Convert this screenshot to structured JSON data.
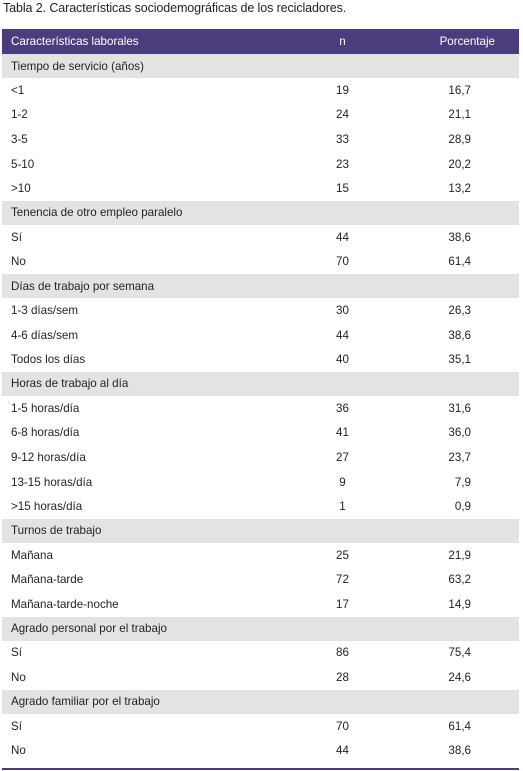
{
  "caption": "Tabla 2. Características sociodemográficas de los recicladores.",
  "header": {
    "col1": "Características laborales",
    "col2": "n",
    "col3": "Porcentaje"
  },
  "sections": [
    {
      "title": "Tiempo de servicio (años)",
      "rows": [
        {
          "label": "<1",
          "n": "19",
          "pct": "16,7"
        },
        {
          "label": "1-2",
          "n": "24",
          "pct": "21,1"
        },
        {
          "label": "3-5",
          "n": "33",
          "pct": "28,9"
        },
        {
          "label": "5-10",
          "n": "23",
          "pct": "20,2"
        },
        {
          "label": ">10",
          "n": "15",
          "pct": "13,2"
        }
      ]
    },
    {
      "title": "Tenencia de otro empleo paralelo",
      "rows": [
        {
          "label": "Sí",
          "n": "44",
          "pct": "38,6"
        },
        {
          "label": "No",
          "n": "70",
          "pct": "61,4"
        }
      ]
    },
    {
      "title": "Días de trabajo por semana",
      "rows": [
        {
          "label": "1-3 días/sem",
          "n": "30",
          "pct": "26,3"
        },
        {
          "label": "4-6 días/sem",
          "n": "44",
          "pct": "38,6"
        },
        {
          "label": "Todos los días",
          "n": "40",
          "pct": "35,1"
        }
      ]
    },
    {
      "title": "Horas de trabajo al día",
      "rows": [
        {
          "label": "1-5 horas/día",
          "n": "36",
          "pct": "31,6"
        },
        {
          "label": "6-8 horas/día",
          "n": "41",
          "pct": "36,0"
        },
        {
          "label": "9-12 horas/día",
          "n": "27",
          "pct": "23,7"
        },
        {
          "label": "13-15 horas/día",
          "n": "9",
          "pct": "7,9"
        },
        {
          "label": ">15 horas/día",
          "n": "1",
          "pct": "0,9"
        }
      ]
    },
    {
      "title": "Turnos de trabajo",
      "rows": [
        {
          "label": "Mañana",
          "n": "25",
          "pct": "21,9"
        },
        {
          "label": "Mañana-tarde",
          "n": "72",
          "pct": "63,2"
        },
        {
          "label": "Mañana-tarde-noche",
          "n": "17",
          "pct": "14,9"
        }
      ]
    },
    {
      "title": "Agrado personal por el trabajo",
      "rows": [
        {
          "label": "Sí",
          "n": "86",
          "pct": "75,4"
        },
        {
          "label": "No",
          "n": "28",
          "pct": "24,6"
        }
      ]
    },
    {
      "title": "Agrado familiar por el trabajo",
      "rows": [
        {
          "label": "Sí",
          "n": "70",
          "pct": "61,4"
        },
        {
          "label": "No",
          "n": "44",
          "pct": "38,6"
        }
      ]
    }
  ],
  "colors": {
    "header_bg": "#4b3d7d",
    "section_bg": "#e3e3e4",
    "text": "#231f20"
  }
}
